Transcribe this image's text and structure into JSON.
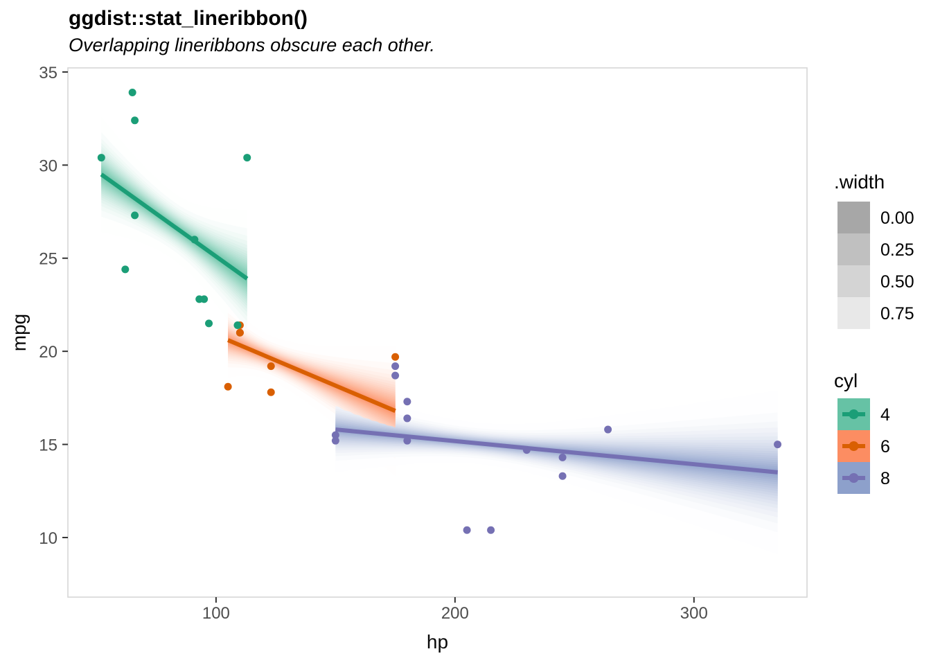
{
  "chart_data": {
    "type": "scatter+lineribbon",
    "title": "ggdist::stat_lineribbon()",
    "subtitle": "Overlapping lineribbons obscure each other.",
    "xlabel": "hp",
    "ylabel": "mpg",
    "x_ticks": [
      100,
      200,
      300
    ],
    "y_ticks": [
      35,
      30,
      25,
      20,
      15,
      10
    ],
    "xlim": [
      38,
      347.3
    ],
    "ylim": [
      6.8,
      35.22
    ],
    "grid": "none",
    "legend_position": "right",
    "ribbon_widths_shown": [
      0.0,
      0.25,
      0.5,
      0.75
    ],
    "groups": [
      {
        "cyl": "4",
        "line_color": "#1B9E77",
        "fill_color": "#66C2A5",
        "trend_x": [
          52,
          113
        ],
        "trend_y": [
          29.5,
          23.9
        ],
        "ribbon": {
          "xbar": 82.6,
          "w_start": 3.1,
          "w_mid": 1.8,
          "w_end": 3.7
        },
        "points": [
          [
            93,
            22.8
          ],
          [
            62,
            24.4
          ],
          [
            95,
            22.8
          ],
          [
            66,
            32.4
          ],
          [
            52,
            30.4
          ],
          [
            65,
            33.9
          ],
          [
            97,
            21.5
          ],
          [
            66,
            27.3
          ],
          [
            91,
            26.0
          ],
          [
            113,
            30.4
          ],
          [
            109,
            21.4
          ]
        ]
      },
      {
        "cyl": "6",
        "line_color": "#D95F02",
        "fill_color": "#FC8D62",
        "trend_x": [
          105,
          175
        ],
        "trend_y": [
          20.6,
          16.8
        ],
        "ribbon": {
          "xbar": 122.3,
          "w_start": 2.0,
          "w_mid": 1.2,
          "w_end": 3.5
        },
        "points": [
          [
            110,
            21.0
          ],
          [
            110,
            21.0
          ],
          [
            110,
            21.4
          ],
          [
            105,
            18.1
          ],
          [
            123,
            19.2
          ],
          [
            123,
            17.8
          ],
          [
            175,
            19.7
          ]
        ]
      },
      {
        "cyl": "8",
        "line_color": "#7570B3",
        "fill_color": "#8DA0CB",
        "trend_x": [
          150,
          335
        ],
        "trend_y": [
          15.8,
          13.5
        ],
        "ribbon": {
          "xbar": 209.2,
          "w_start": 2.3,
          "w_mid": 1.1,
          "w_end": 4.4
        },
        "points": [
          [
            175,
            18.7
          ],
          [
            245,
            14.3
          ],
          [
            180,
            16.4
          ],
          [
            180,
            17.3
          ],
          [
            180,
            15.2
          ],
          [
            205,
            10.4
          ],
          [
            215,
            10.4
          ],
          [
            230,
            14.7
          ],
          [
            150,
            15.5
          ],
          [
            150,
            15.2
          ],
          [
            245,
            13.3
          ],
          [
            175,
            19.2
          ],
          [
            264,
            15.8
          ],
          [
            335,
            15.0
          ]
        ]
      }
    ],
    "legends": [
      {
        "title": ".width",
        "type": "ramp",
        "entries": [
          {
            "label": "0.00",
            "color": "#A7A7A7"
          },
          {
            "label": "0.25",
            "color": "#C0C0C0"
          },
          {
            "label": "0.50",
            "color": "#D4D4D4"
          },
          {
            "label": "0.75",
            "color": "#E8E8E8"
          }
        ]
      },
      {
        "title": "cyl",
        "type": "lineribbon-key",
        "entries": [
          {
            "label": "4",
            "fill": "#66C2A5",
            "color": "#1B9E77"
          },
          {
            "label": "6",
            "fill": "#FC8D62",
            "color": "#D95F02"
          },
          {
            "label": "8",
            "fill": "#8DA0CB",
            "color": "#7570B3"
          }
        ]
      }
    ]
  }
}
